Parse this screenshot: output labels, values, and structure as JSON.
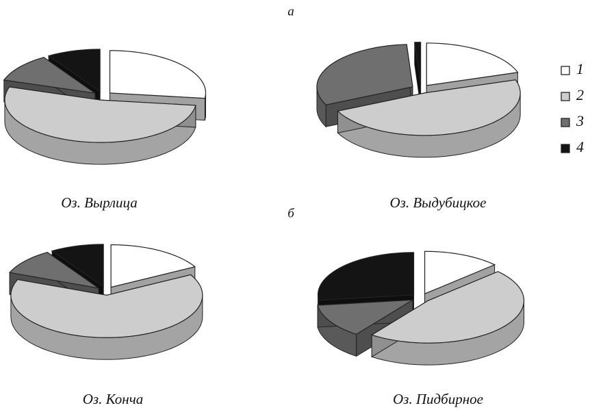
{
  "panels": [
    "а",
    "б"
  ],
  "legend": {
    "labels": [
      "1",
      "2",
      "3",
      "4"
    ],
    "colors": [
      "#ffffff",
      "#cdcdcd",
      "#6f6f6f",
      "#141414"
    ]
  },
  "chart_data": [
    {
      "type": "pie",
      "title": "Оз. Вырлица",
      "values": [
        27,
        53,
        11,
        9
      ]
    },
    {
      "type": "pie",
      "title": "Оз. Выдубицкое",
      "values": [
        20,
        48,
        31,
        1
      ]
    },
    {
      "type": "pie",
      "title": "Оз. Конча",
      "values": [
        17,
        64,
        10,
        9
      ]
    },
    {
      "type": "pie",
      "title": "Оз. Пидбирное",
      "values": [
        13,
        47,
        13,
        27
      ]
    }
  ]
}
